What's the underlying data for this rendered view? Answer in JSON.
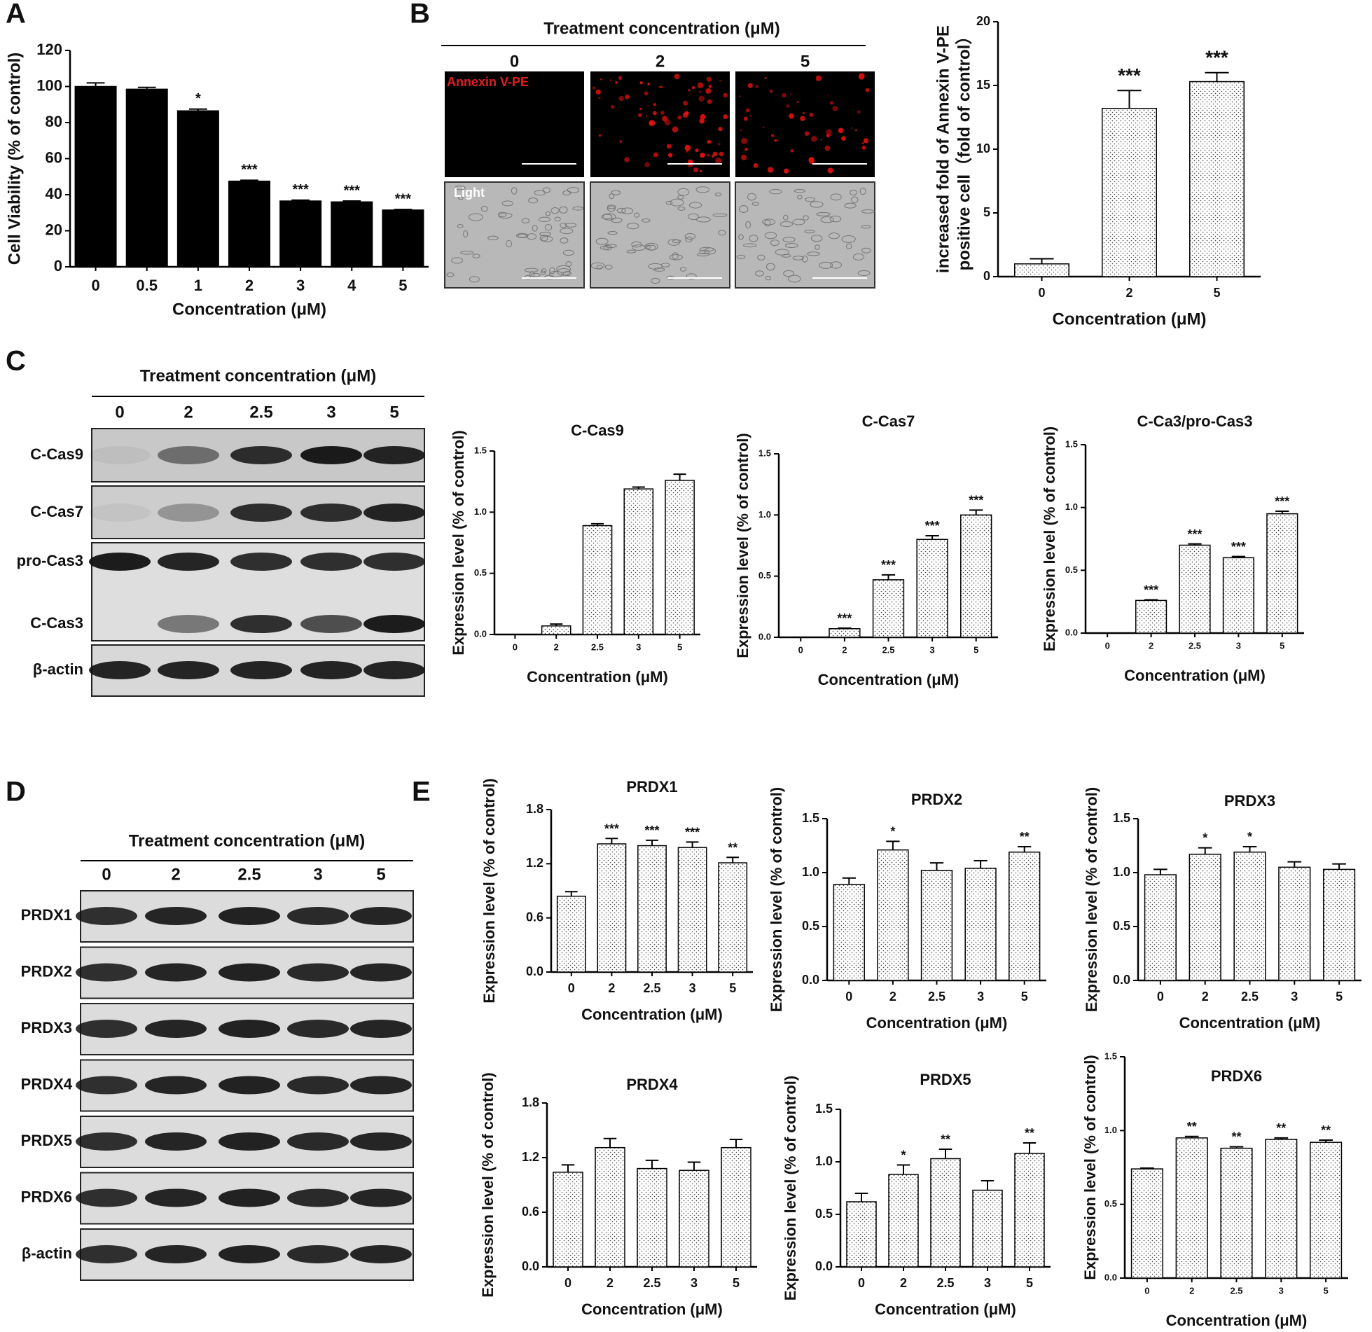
{
  "panel_labels": [
    "A",
    "B",
    "C",
    "D",
    "E"
  ],
  "microscopy": {
    "title": "Treatment concentration (μM)",
    "columns": [
      "0",
      "2",
      "5"
    ],
    "rows": [
      "Annexin V-PE",
      "Light"
    ]
  },
  "blot_c": {
    "title": "Treatment concentration (μM)",
    "columns": [
      "0",
      "2",
      "2.5",
      "3",
      "5"
    ],
    "rows": [
      "C-Cas9",
      "C-Cas7",
      "pro-Cas3",
      "C-Cas3",
      "β-actin"
    ]
  },
  "blot_d": {
    "title": "Treatment concentration (μM)",
    "columns": [
      "0",
      "2",
      "2.5",
      "3",
      "5"
    ],
    "rows": [
      "PRDX1",
      "PRDX2",
      "PRDX3",
      "PRDX4",
      "PRDX5",
      "PRDX6",
      "β-actin"
    ]
  },
  "chart_data": [
    {
      "type": "bar",
      "x_label": "Concentration (μM)",
      "y_label": [
        "Cell Viability (% of control)"
      ],
      "categories": [
        "0",
        "0.5",
        "1",
        "2",
        "3",
        "4",
        "5"
      ],
      "values": [
        100,
        98.5,
        86.5,
        47.5,
        36.5,
        36,
        31.5
      ],
      "errors": [
        2,
        1,
        1,
        0.5,
        0.5,
        0.5,
        0.3
      ],
      "annotations": [
        null,
        null,
        "*",
        "***",
        "***",
        "***",
        "***"
      ],
      "ylim": [
        0,
        120
      ],
      "yticks": [
        0,
        20,
        40,
        60,
        80,
        100,
        120
      ],
      "color": "#000000",
      "hatch": false
    },
    {
      "type": "bar",
      "x_label": "Concentration (μM)",
      "y_label": [
        "increased fold of Annexin V-PE",
        "positive cell（fold of control）"
      ],
      "categories": [
        "0",
        "2",
        "5"
      ],
      "values": [
        1.0,
        13.2,
        15.3
      ],
      "errors": [
        0.4,
        1.4,
        0.7
      ],
      "annotations": [
        null,
        "***",
        "***"
      ],
      "ylim": [
        0,
        20
      ],
      "yticks": [
        0,
        5,
        10,
        15,
        20
      ],
      "color": "#000000",
      "hatch": true
    },
    {
      "type": "bar",
      "title": "C-Cas9",
      "x_label": "Concentration (μM)",
      "y_label": [
        "Expression level (% of control)"
      ],
      "categories": [
        "0",
        "2",
        "2.5",
        "3",
        "5"
      ],
      "values": [
        0,
        0.07,
        0.89,
        1.19,
        1.26
      ],
      "errors": [
        0,
        0.015,
        0.015,
        0.015,
        0.05
      ],
      "annotations": [
        null,
        null,
        null,
        null,
        null
      ],
      "ylim": [
        0,
        1.5
      ],
      "yticks": [
        {
          "value": 0,
          "label": "0.0"
        },
        0.5,
        {
          "value": 1,
          "label": "1.0"
        },
        1.5
      ],
      "color": "#000000",
      "hatch": true
    },
    {
      "type": "bar",
      "title": "C-Cas7",
      "x_label": "Concentration (μM)",
      "y_label": [
        "Expression level (% of control)"
      ],
      "categories": [
        "0",
        "2",
        "2.5",
        "3",
        "5"
      ],
      "values": [
        0,
        0.07,
        0.47,
        0.8,
        1.0
      ],
      "errors": [
        0,
        0.005,
        0.04,
        0.03,
        0.04
      ],
      "annotations": [
        null,
        "***",
        "***",
        "***",
        "***"
      ],
      "ylim": [
        0,
        1.5
      ],
      "yticks": [
        {
          "value": 0,
          "label": "0.0"
        },
        0.5,
        {
          "value": 1,
          "label": "1.0"
        },
        1.5
      ],
      "color": "#000000",
      "hatch": true
    },
    {
      "type": "bar",
      "title": "C-Ca3/pro-Cas3",
      "x_label": "Concentration (μM)",
      "y_label": [
        "Expression level (% of control)"
      ],
      "categories": [
        "0",
        "2",
        "2.5",
        "3",
        "5"
      ],
      "values": [
        0,
        0.26,
        0.7,
        0.6,
        0.95
      ],
      "errors": [
        0,
        0.005,
        0.01,
        0.01,
        0.02
      ],
      "annotations": [
        null,
        "***",
        "***",
        "***",
        "***"
      ],
      "ylim": [
        0,
        1.5
      ],
      "yticks": [
        {
          "value": 0,
          "label": "0.0"
        },
        0.5,
        {
          "value": 1,
          "label": "1.0"
        },
        1.5
      ],
      "color": "#000000",
      "hatch": true
    },
    {
      "type": "bar",
      "title": "PRDX1",
      "x_label": "Concentration (μM)",
      "y_label": [
        "Expression level (% of control)"
      ],
      "categories": [
        "0",
        "2",
        "2.5",
        "3",
        "5"
      ],
      "values": [
        0.84,
        1.42,
        1.4,
        1.38,
        1.21
      ],
      "errors": [
        0.05,
        0.06,
        0.06,
        0.06,
        0.06
      ],
      "annotations": [
        null,
        "***",
        "***",
        "***",
        "**"
      ],
      "ylim": [
        0,
        1.8
      ],
      "yticks": [
        {
          "value": 0,
          "label": "0.0"
        },
        0.6,
        1.2,
        1.8
      ],
      "color": "#000000",
      "hatch": true
    },
    {
      "type": "bar",
      "title": "PRDX2",
      "x_label": "Concentration (μM)",
      "y_label": [
        "Expression level (% of control)"
      ],
      "categories": [
        "0",
        "2",
        "2.5",
        "3",
        "5"
      ],
      "values": [
        0.89,
        1.21,
        1.02,
        1.04,
        1.19
      ],
      "errors": [
        0.06,
        0.08,
        0.07,
        0.07,
        0.05
      ],
      "annotations": [
        null,
        "*",
        null,
        null,
        "**"
      ],
      "ylim": [
        0,
        1.5
      ],
      "yticks": [
        {
          "value": 0,
          "label": "0.0"
        },
        0.5,
        {
          "value": 1,
          "label": "1.0"
        },
        1.5
      ],
      "color": "#000000",
      "hatch": true
    },
    {
      "type": "bar",
      "title": "PRDX3",
      "x_label": "Concentration (μM)",
      "y_label": [
        "Expression level (% of control)"
      ],
      "categories": [
        "0",
        "2",
        "2.5",
        "3",
        "5"
      ],
      "values": [
        0.98,
        1.17,
        1.19,
        1.05,
        1.03
      ],
      "errors": [
        0.05,
        0.06,
        0.05,
        0.05,
        0.05
      ],
      "annotations": [
        null,
        "*",
        "*",
        null,
        null
      ],
      "ylim": [
        0,
        1.5
      ],
      "yticks": [
        {
          "value": 0,
          "label": "0.0"
        },
        0.5,
        {
          "value": 1,
          "label": "1.0"
        },
        1.5
      ],
      "color": "#000000",
      "hatch": true
    },
    {
      "type": "bar",
      "title": "PRDX4",
      "x_label": "Concentration (μM)",
      "y_label": [
        "Expression level (% of control)"
      ],
      "categories": [
        "0",
        "2",
        "2.5",
        "3",
        "5"
      ],
      "values": [
        1.04,
        1.31,
        1.08,
        1.06,
        1.31
      ],
      "errors": [
        0.08,
        0.1,
        0.09,
        0.09,
        0.09
      ],
      "annotations": [
        null,
        null,
        null,
        null,
        null
      ],
      "ylim": [
        0,
        1.8
      ],
      "yticks": [
        {
          "value": 0,
          "label": "0.0"
        },
        0.6,
        1.2,
        1.8
      ],
      "color": "#000000",
      "hatch": true
    },
    {
      "type": "bar",
      "title": "PRDX5",
      "x_label": "Concentration (μM)",
      "y_label": [
        "Expression level (% of control)"
      ],
      "categories": [
        "0",
        "2",
        "2.5",
        "3",
        "5"
      ],
      "values": [
        0.62,
        0.88,
        1.03,
        0.73,
        1.08
      ],
      "errors": [
        0.08,
        0.09,
        0.09,
        0.09,
        0.1
      ],
      "annotations": [
        null,
        "*",
        "**",
        null,
        "**"
      ],
      "ylim": [
        0,
        1.5
      ],
      "yticks": [
        {
          "value": 0,
          "label": "0.0"
        },
        0.5,
        {
          "value": 1,
          "label": "1.0"
        },
        1.5
      ],
      "color": "#000000",
      "hatch": true
    },
    {
      "type": "bar",
      "title": "PRDX6",
      "x_label": "Concentration (μM)",
      "y_label": [
        "Expression level (% of control)"
      ],
      "categories": [
        "0",
        "2",
        "2.5",
        "3",
        "5"
      ],
      "values": [
        0.74,
        0.95,
        0.88,
        0.94,
        0.92
      ],
      "errors": [
        0.005,
        0.01,
        0.01,
        0.01,
        0.015
      ],
      "annotations": [
        null,
        "**",
        "**",
        "**",
        "**"
      ],
      "ylim": [
        0,
        1.5
      ],
      "yticks": [
        {
          "value": 0,
          "label": "0.0"
        },
        0.5,
        {
          "value": 1,
          "label": "1.0"
        },
        1.5
      ],
      "color": "#000000",
      "hatch": true
    }
  ]
}
